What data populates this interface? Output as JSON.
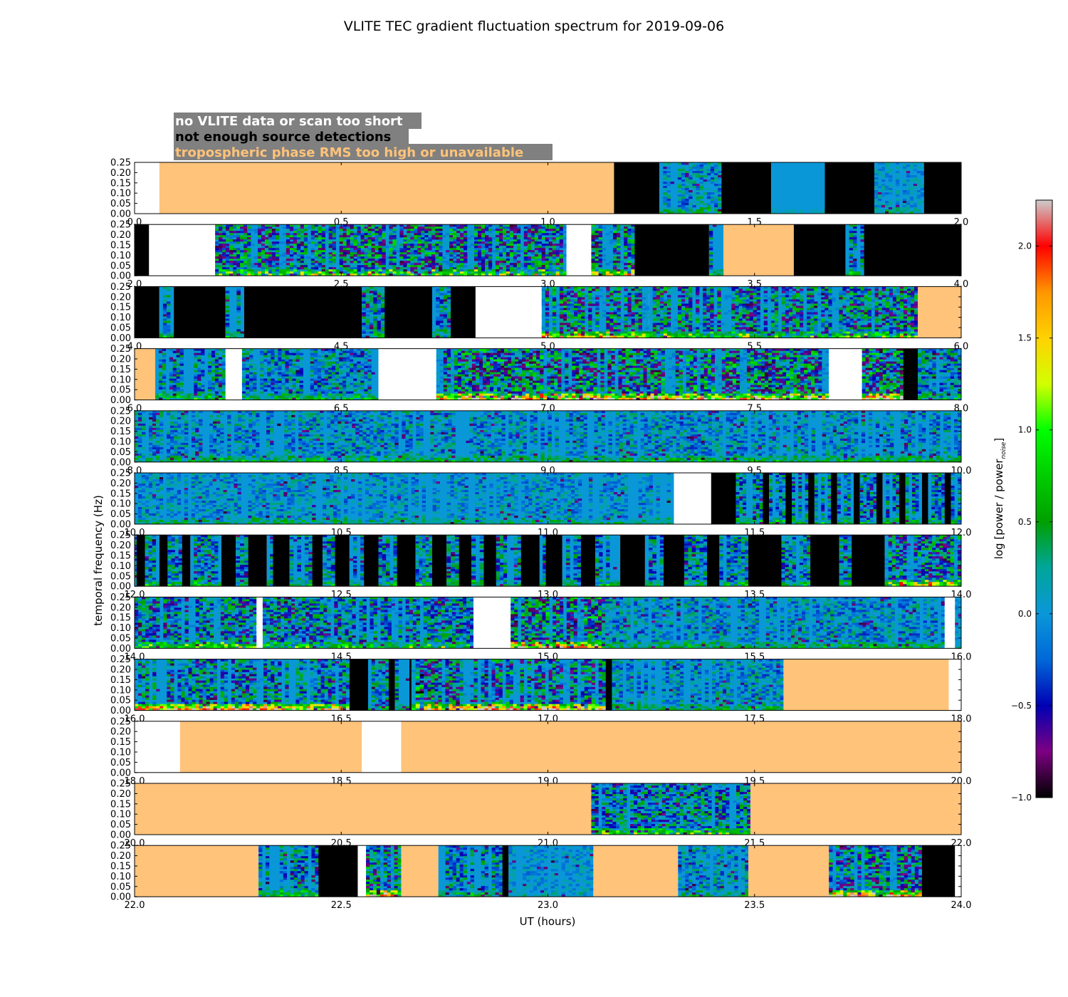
{
  "title": "VLITE TEC gradient fluctuation spectrum for 2019-09-06",
  "xlabel": "UT (hours)",
  "ylabel": "temporal frequency (Hz)",
  "colorbar": {
    "label_main": "log [power / power",
    "label_sub": "noise",
    "label_end": "]",
    "ticks": [
      -1.0,
      -0.5,
      0.0,
      0.5,
      1.0,
      1.5,
      2.0
    ],
    "tick_labels": [
      "−1.0",
      "−0.5",
      "0.0",
      "0.5",
      "1.0",
      "1.5",
      "2.0"
    ],
    "range": [
      -1.0,
      2.25
    ]
  },
  "legend": {
    "items": [
      {
        "text": "no VLITE data or scan too short",
        "key": "nodata",
        "text_color": "#ffffff"
      },
      {
        "text": "not enough source detections",
        "key": "nodet",
        "text_color": "#000000"
      },
      {
        "text": "tropospheric phase RMS too high or unavailable",
        "key": "tropo",
        "text_color": "#ffc37a"
      }
    ],
    "background": "#808080"
  },
  "colors": {
    "nodata": "#ffffff",
    "nodet": "#000000",
    "tropo": "#ffc37a",
    "baseline": "#0a97d8"
  },
  "chart_data": {
    "type": "heatmap",
    "title": "VLITE TEC gradient fluctuation spectrum for 2019-09-06",
    "xlabel": "UT (hours)",
    "ylabel": "temporal frequency (Hz)",
    "ylim": [
      0.0,
      0.25
    ],
    "ytick_labels": [
      "0.00",
      "0.05",
      "0.10",
      "0.15",
      "0.20",
      "0.25"
    ],
    "colorbar_range": [
      -1.0,
      2.25
    ],
    "panels": [
      {
        "x_range": [
          0,
          2
        ],
        "xtick_labels": [
          "0.0",
          "0.5",
          "1.0",
          "1.5",
          "2.0"
        ],
        "segments": [
          [
            0,
            0.06,
            "nodata"
          ],
          [
            0.06,
            1.16,
            "tropo"
          ],
          [
            1.16,
            1.27,
            "nodet"
          ],
          [
            1.27,
            1.42,
            "spec",
            0.6,
            0.3
          ],
          [
            1.42,
            1.54,
            "nodet"
          ],
          [
            1.54,
            1.67,
            "spec",
            0.1,
            0.1
          ],
          [
            1.67,
            1.79,
            "nodet"
          ],
          [
            1.79,
            1.91,
            "spec",
            0.4,
            0.2
          ],
          [
            1.91,
            2.0,
            "nodet"
          ]
        ]
      },
      {
        "x_range": [
          2,
          4
        ],
        "xtick_labels": [
          "2.0",
          "2.5",
          "3.0",
          "3.5",
          "4.0"
        ],
        "segments": [
          [
            2.0,
            2.035,
            "nodet"
          ],
          [
            2.035,
            2.195,
            "nodata"
          ],
          [
            2.195,
            3.045,
            "spec",
            1.2,
            0.6
          ],
          [
            3.045,
            3.105,
            "nodata"
          ],
          [
            3.105,
            3.21,
            "spec",
            1.3,
            0.9
          ],
          [
            3.21,
            3.39,
            "nodet"
          ],
          [
            3.39,
            3.425,
            "spec",
            0.8,
            0.3
          ],
          [
            3.425,
            3.595,
            "tropo"
          ],
          [
            3.595,
            3.72,
            "nodet"
          ],
          [
            3.72,
            3.765,
            "spec",
            0.8,
            0.4
          ],
          [
            3.765,
            4.0,
            "nodet"
          ]
        ]
      },
      {
        "x_range": [
          4,
          6
        ],
        "xtick_labels": [
          "4.0",
          "4.5",
          "5.0",
          "5.5",
          "6.0"
        ],
        "segments": [
          [
            4.0,
            4.06,
            "nodet"
          ],
          [
            4.06,
            4.095,
            "spec",
            0.8,
            0.3
          ],
          [
            4.095,
            4.22,
            "nodet"
          ],
          [
            4.22,
            4.265,
            "spec",
            0.8,
            0.3
          ],
          [
            4.265,
            4.55,
            "nodet"
          ],
          [
            4.55,
            4.605,
            "spec",
            0.8,
            0.3
          ],
          [
            4.605,
            4.72,
            "nodet"
          ],
          [
            4.72,
            4.765,
            "spec",
            0.8,
            0.3
          ],
          [
            4.765,
            4.825,
            "nodet"
          ],
          [
            4.825,
            4.985,
            "nodata"
          ],
          [
            4.985,
            5.245,
            "spec",
            1.2,
            1.0
          ],
          [
            5.245,
            5.895,
            "spec",
            1.1,
            0.5
          ],
          [
            5.895,
            6.0,
            "tropo"
          ]
        ]
      },
      {
        "x_range": [
          6,
          8
        ],
        "xtick_labels": [
          "6.0",
          "6.5",
          "7.0",
          "7.5",
          "8.0"
        ],
        "segments": [
          [
            6.0,
            6.05,
            "tropo"
          ],
          [
            6.05,
            6.22,
            "spec",
            0.8,
            0.4
          ],
          [
            6.22,
            6.26,
            "nodata"
          ],
          [
            6.26,
            6.59,
            "spec",
            0.7,
            0.3
          ],
          [
            6.59,
            6.73,
            "nodata"
          ],
          [
            6.73,
            7.68,
            "spec",
            1.3,
            1.2
          ],
          [
            7.68,
            7.76,
            "nodata"
          ],
          [
            7.76,
            7.86,
            "spec",
            1.3,
            1.3
          ],
          [
            7.86,
            7.895,
            "nodet"
          ],
          [
            7.895,
            8.0,
            "spec",
            0.8,
            0.3
          ]
        ]
      },
      {
        "x_range": [
          8,
          10
        ],
        "xtick_labels": [
          "8.0",
          "8.5",
          "9.0",
          "9.5",
          "10.0"
        ],
        "segments": [
          [
            8.0,
            10.0,
            "spec",
            0.6,
            0.3
          ]
        ]
      },
      {
        "x_range": [
          10,
          12
        ],
        "xtick_labels": [
          "10.0",
          "10.5",
          "11.0",
          "11.5",
          "12.0"
        ],
        "segments": [
          [
            10.0,
            11.305,
            "spec",
            0.5,
            0.2
          ],
          [
            11.305,
            11.395,
            "nodata"
          ],
          [
            11.395,
            11.455,
            "nodet"
          ],
          [
            11.455,
            11.52,
            "spec",
            0.8,
            0.3
          ],
          [
            11.52,
            11.535,
            "nodet"
          ],
          [
            11.535,
            11.575,
            "spec",
            0.8,
            0.3
          ],
          [
            11.575,
            11.59,
            "nodet"
          ],
          [
            11.59,
            11.63,
            "spec",
            0.8,
            0.3
          ],
          [
            11.63,
            11.645,
            "nodet"
          ],
          [
            11.645,
            11.685,
            "spec",
            0.8,
            0.3
          ],
          [
            11.685,
            11.7,
            "nodet"
          ],
          [
            11.7,
            11.74,
            "spec",
            0.8,
            0.3
          ],
          [
            11.74,
            11.755,
            "nodet"
          ],
          [
            11.755,
            11.795,
            "spec",
            0.8,
            0.3
          ],
          [
            11.795,
            11.81,
            "nodet"
          ],
          [
            11.81,
            11.85,
            "spec",
            0.8,
            0.3
          ],
          [
            11.85,
            11.865,
            "nodet"
          ],
          [
            11.865,
            11.905,
            "spec",
            0.8,
            0.3
          ],
          [
            11.905,
            11.92,
            "nodet"
          ],
          [
            11.92,
            11.96,
            "spec",
            0.8,
            0.3
          ],
          [
            11.96,
            11.975,
            "nodet"
          ],
          [
            11.975,
            12.0,
            "spec",
            0.8,
            0.3
          ]
        ]
      },
      {
        "x_range": [
          12,
          14
        ],
        "xtick_labels": [
          "12.0",
          "12.5",
          "13.0",
          "13.5",
          "14.0"
        ],
        "segments": [
          [
            12.0,
            12.005,
            "spec",
            0.8,
            0.3
          ],
          [
            12.005,
            12.025,
            "nodet"
          ],
          [
            12.025,
            12.06,
            "spec",
            0.8,
            0.3
          ],
          [
            12.06,
            12.08,
            "nodet"
          ],
          [
            12.08,
            12.115,
            "spec",
            0.8,
            0.3
          ],
          [
            12.115,
            12.135,
            "nodet"
          ],
          [
            12.135,
            12.21,
            "spec",
            0.8,
            0.3
          ],
          [
            12.21,
            12.245,
            "nodet"
          ],
          [
            12.245,
            12.275,
            "spec",
            0.8,
            0.3
          ],
          [
            12.275,
            12.32,
            "nodet"
          ],
          [
            12.32,
            12.335,
            "spec",
            0.8,
            0.3
          ],
          [
            12.335,
            12.375,
            "nodet"
          ],
          [
            12.375,
            12.43,
            "spec",
            0.8,
            0.3
          ],
          [
            12.43,
            12.455,
            "nodet"
          ],
          [
            12.455,
            12.485,
            "spec",
            0.8,
            0.3
          ],
          [
            12.485,
            12.52,
            "nodet"
          ],
          [
            12.52,
            12.555,
            "spec",
            0.8,
            0.3
          ],
          [
            12.555,
            12.59,
            "nodet"
          ],
          [
            12.59,
            12.635,
            "spec",
            0.8,
            0.3
          ],
          [
            12.635,
            12.68,
            "nodet"
          ],
          [
            12.68,
            12.72,
            "spec",
            0.8,
            0.3
          ],
          [
            12.72,
            12.755,
            "nodet"
          ],
          [
            12.755,
            12.785,
            "spec",
            0.8,
            0.3
          ],
          [
            12.785,
            12.815,
            "nodet"
          ],
          [
            12.815,
            12.845,
            "spec",
            0.8,
            0.3
          ],
          [
            12.845,
            12.875,
            "nodet"
          ],
          [
            12.875,
            12.935,
            "spec",
            0.8,
            0.3
          ],
          [
            12.935,
            12.98,
            "nodet"
          ],
          [
            12.98,
            12.995,
            "spec",
            0.8,
            0.3
          ],
          [
            12.995,
            13.035,
            "nodet"
          ],
          [
            13.035,
            13.08,
            "spec",
            0.8,
            0.3
          ],
          [
            13.08,
            13.115,
            "nodet"
          ],
          [
            13.115,
            13.175,
            "spec",
            0.8,
            0.3
          ],
          [
            13.175,
            13.235,
            "nodet"
          ],
          [
            13.235,
            13.28,
            "spec",
            0.8,
            0.3
          ],
          [
            13.28,
            13.33,
            "nodet"
          ],
          [
            13.33,
            13.385,
            "spec",
            0.8,
            0.3
          ],
          [
            13.385,
            13.415,
            "nodet"
          ],
          [
            13.415,
            13.485,
            "spec",
            0.8,
            0.3
          ],
          [
            13.485,
            13.565,
            "nodet"
          ],
          [
            13.565,
            13.635,
            "spec",
            0.8,
            0.3
          ],
          [
            13.635,
            13.705,
            "nodet"
          ],
          [
            13.705,
            13.735,
            "spec",
            0.8,
            0.3
          ],
          [
            13.735,
            13.815,
            "nodet"
          ],
          [
            13.815,
            14.0,
            "spec",
            1.1,
            0.8
          ]
        ]
      },
      {
        "x_range": [
          14,
          16
        ],
        "xtick_labels": [
          "14.0",
          "14.5",
          "15.0",
          "15.5",
          "16.0"
        ],
        "segments": [
          [
            14.0,
            14.295,
            "spec",
            1.0,
            0.6
          ],
          [
            14.295,
            14.31,
            "nodata"
          ],
          [
            14.31,
            14.82,
            "spec",
            0.9,
            0.4
          ],
          [
            14.82,
            14.91,
            "nodata"
          ],
          [
            14.91,
            15.13,
            "spec",
            1.3,
            1.3
          ],
          [
            15.13,
            15.96,
            "spec",
            0.6,
            0.3
          ],
          [
            15.96,
            15.985,
            "nodata"
          ],
          [
            15.985,
            16.0,
            "spec",
            0.3,
            0.1
          ]
        ]
      },
      {
        "x_range": [
          16,
          18
        ],
        "xtick_labels": [
          "16.0",
          "16.5",
          "17.0",
          "17.5",
          "18.0"
        ],
        "segments": [
          [
            16.0,
            16.52,
            "spec",
            0.9,
            1.3
          ],
          [
            16.52,
            16.565,
            "nodet"
          ],
          [
            16.565,
            16.615,
            "spec",
            0.8,
            0.3
          ],
          [
            16.615,
            16.63,
            "nodet"
          ],
          [
            16.63,
            16.665,
            "spec",
            0.8,
            0.3
          ],
          [
            16.665,
            16.67,
            "nodet"
          ],
          [
            16.67,
            16.7,
            "spec",
            1.5,
            0.6
          ],
          [
            16.7,
            17.14,
            "spec",
            1.1,
            1.3
          ],
          [
            17.14,
            17.155,
            "nodet"
          ],
          [
            17.155,
            17.57,
            "spec",
            0.6,
            0.3
          ],
          [
            17.57,
            17.97,
            "tropo"
          ],
          [
            17.97,
            18.0,
            "nodata"
          ]
        ]
      },
      {
        "x_range": [
          18,
          20
        ],
        "xtick_labels": [
          "18.0",
          "18.5",
          "19.0",
          "19.5",
          "20.0"
        ],
        "segments": [
          [
            18.0,
            18.11,
            "nodata"
          ],
          [
            18.11,
            18.55,
            "tropo"
          ],
          [
            18.55,
            18.645,
            "nodata"
          ],
          [
            18.645,
            20.0,
            "tropo"
          ]
        ]
      },
      {
        "x_range": [
          20,
          22
        ],
        "xtick_labels": [
          "20.0",
          "20.5",
          "21.0",
          "21.5",
          "22.0"
        ],
        "segments": [
          [
            20.0,
            21.105,
            "tropo"
          ],
          [
            21.105,
            21.49,
            "spec",
            0.9,
            0.5
          ],
          [
            21.49,
            22.0,
            "tropo"
          ]
        ]
      },
      {
        "x_range": [
          22,
          24
        ],
        "xtick_labels": [
          "22.0",
          "22.5",
          "23.0",
          "23.5",
          "24.0"
        ],
        "segments": [
          [
            22.0,
            22.3,
            "tropo"
          ],
          [
            22.3,
            22.445,
            "spec",
            0.8,
            0.4
          ],
          [
            22.445,
            22.54,
            "nodet"
          ],
          [
            22.54,
            22.56,
            "nodata"
          ],
          [
            22.56,
            22.645,
            "spec",
            1.2,
            1.2
          ],
          [
            22.645,
            22.735,
            "tropo"
          ],
          [
            22.735,
            22.89,
            "spec",
            0.8,
            0.3
          ],
          [
            22.89,
            22.905,
            "nodet"
          ],
          [
            22.905,
            23.11,
            "spec",
            0.4,
            0.1
          ],
          [
            23.11,
            23.315,
            "tropo"
          ],
          [
            23.315,
            23.485,
            "spec",
            0.6,
            0.2
          ],
          [
            23.485,
            23.68,
            "tropo"
          ],
          [
            23.68,
            23.905,
            "spec",
            1.1,
            1.2
          ],
          [
            23.905,
            23.985,
            "nodet"
          ],
          [
            23.985,
            24.0,
            "nodata"
          ]
        ]
      }
    ]
  }
}
